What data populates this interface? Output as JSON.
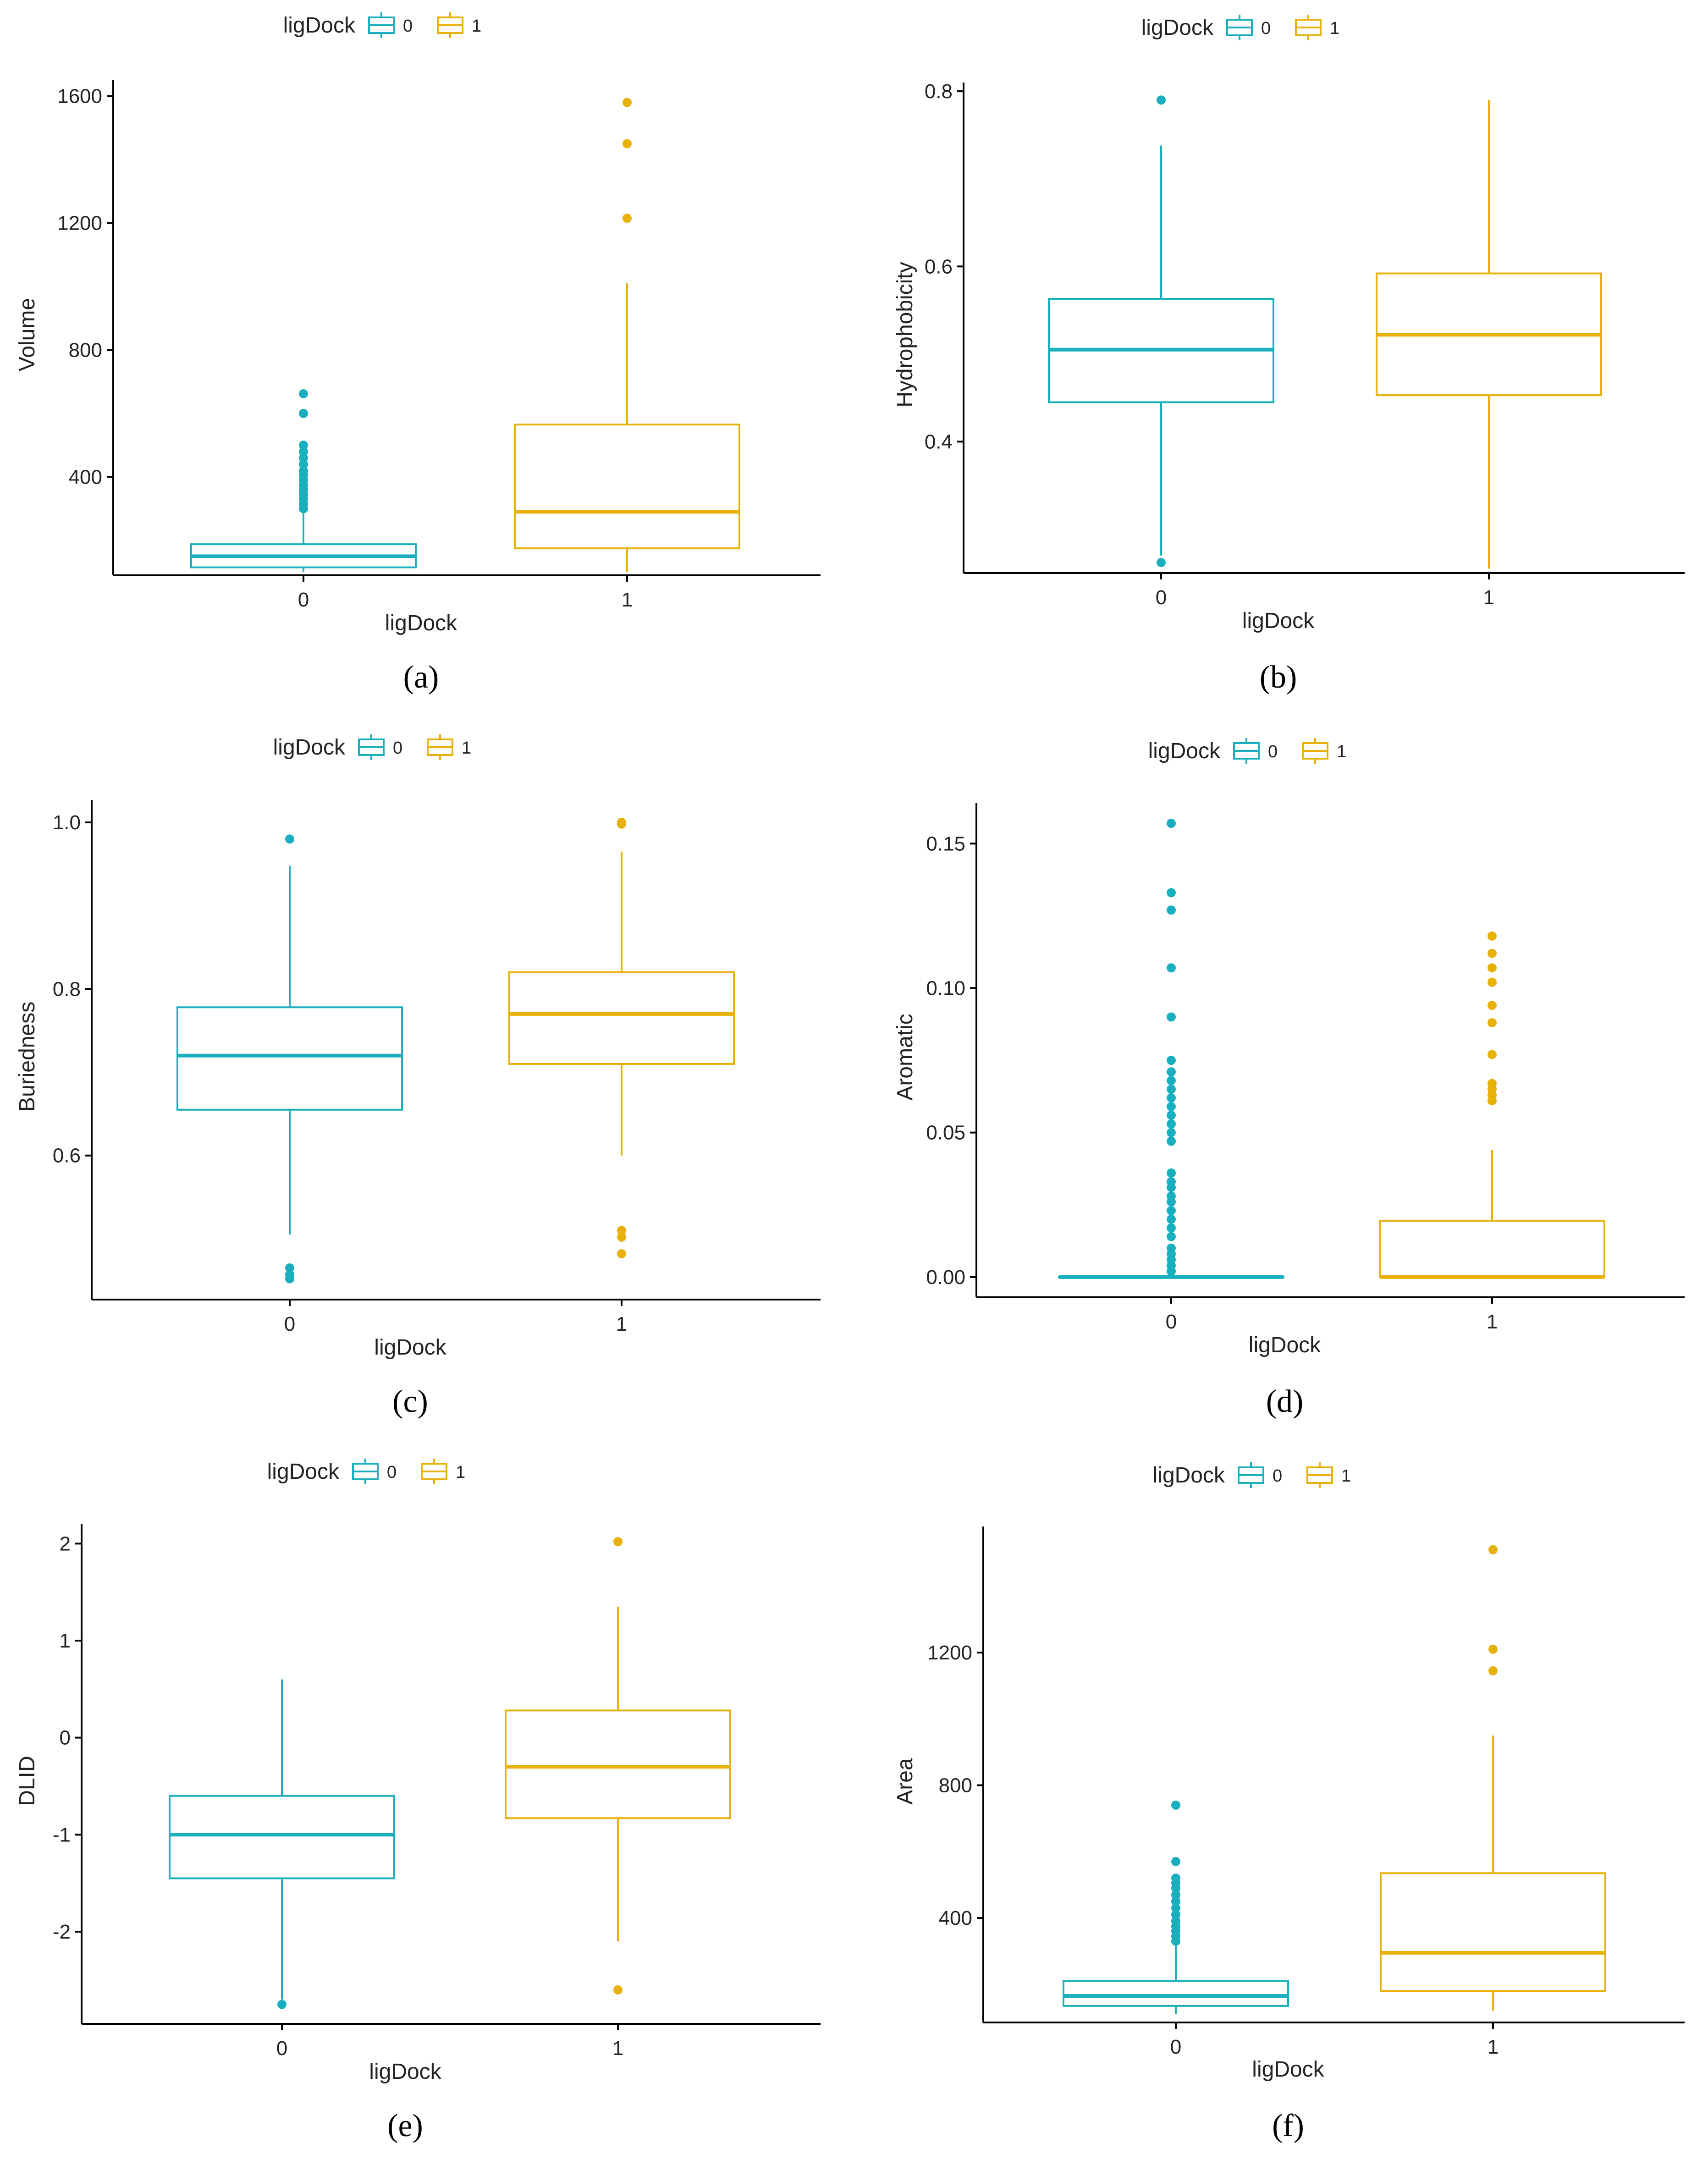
{
  "colors": {
    "group0": "#1AAFBE",
    "group1": "#E7B10A"
  },
  "legend": {
    "title": "ligDock",
    "keys": [
      "0",
      "1"
    ]
  },
  "chart_data": [
    {
      "type": "box",
      "panel_label": "(a)",
      "title": "",
      "xlabel": "ligDock",
      "ylabel": "Volume",
      "categories": [
        "0",
        "1"
      ],
      "ylim": [
        90,
        1650
      ],
      "yticks": [
        400,
        800,
        1200,
        1600
      ],
      "ytick_labels": [
        "400",
        "800",
        "1200",
        "1600"
      ],
      "boxes": [
        {
          "name": "0",
          "q1": 115,
          "median": 150,
          "q3": 188,
          "whisker_low": 100,
          "whisker_high": 290,
          "outliers": [
            300,
            315,
            330,
            345,
            360,
            375,
            390,
            405,
            420,
            440,
            460,
            480,
            500,
            600,
            662
          ]
        },
        {
          "name": "1",
          "q1": 175,
          "median": 290,
          "q3": 565,
          "whisker_low": 100,
          "whisker_high": 1010,
          "outliers": [
            1215,
            1450,
            1580
          ]
        }
      ]
    },
    {
      "type": "box",
      "panel_label": "(b)",
      "title": "",
      "xlabel": "ligDock",
      "ylabel": "Hydrophobicity",
      "categories": [
        "0",
        "1"
      ],
      "ylim": [
        0.25,
        0.81
      ],
      "yticks": [
        0.4,
        0.6,
        0.8
      ],
      "ytick_labels": [
        "0.4",
        "0.6",
        "0.8"
      ],
      "boxes": [
        {
          "name": "0",
          "q1": 0.445,
          "median": 0.505,
          "q3": 0.563,
          "whisker_low": 0.27,
          "whisker_high": 0.738,
          "outliers": [
            0.262,
            0.79
          ]
        },
        {
          "name": "1",
          "q1": 0.453,
          "median": 0.522,
          "q3": 0.592,
          "whisker_low": 0.255,
          "whisker_high": 0.79,
          "outliers": []
        }
      ]
    },
    {
      "type": "box",
      "panel_label": "(c)",
      "title": "",
      "xlabel": "ligDock",
      "ylabel": "Buriedness",
      "categories": [
        "0",
        "1"
      ],
      "ylim": [
        0.427,
        1.027
      ],
      "yticks": [
        0.6,
        0.8,
        1.0
      ],
      "ytick_labels": [
        "0.6",
        "0.8",
        "1.0"
      ],
      "boxes": [
        {
          "name": "0",
          "q1": 0.655,
          "median": 0.72,
          "q3": 0.778,
          "whisker_low": 0.505,
          "whisker_high": 0.948,
          "outliers": [
            0.452,
            0.457,
            0.465,
            0.98
          ]
        },
        {
          "name": "1",
          "q1": 0.71,
          "median": 0.77,
          "q3": 0.82,
          "whisker_low": 0.6,
          "whisker_high": 0.965,
          "outliers": [
            0.482,
            0.502,
            0.51,
            0.998,
            1.0
          ]
        }
      ]
    },
    {
      "type": "box",
      "panel_label": "(d)",
      "title": "",
      "xlabel": "ligDock",
      "ylabel": "Aromatic",
      "categories": [
        "0",
        "1"
      ],
      "ylim": [
        -0.007,
        0.164
      ],
      "yticks": [
        0.0,
        0.05,
        0.1,
        0.15
      ],
      "ytick_labels": [
        "0.00",
        "0.05",
        "0.10",
        "0.15"
      ],
      "boxes": [
        {
          "name": "0",
          "q1": 0.0,
          "median": 0.0,
          "q3": 0.0,
          "whisker_low": 0.0,
          "whisker_high": 0.0,
          "outliers": [
            0.002,
            0.004,
            0.006,
            0.008,
            0.01,
            0.014,
            0.017,
            0.02,
            0.023,
            0.026,
            0.028,
            0.031,
            0.033,
            0.036,
            0.047,
            0.05,
            0.053,
            0.056,
            0.059,
            0.062,
            0.065,
            0.068,
            0.071,
            0.075,
            0.09,
            0.107,
            0.127,
            0.133,
            0.157
          ]
        },
        {
          "name": "1",
          "q1": 0.0,
          "median": 0.0,
          "q3": 0.0195,
          "whisker_low": 0.0,
          "whisker_high": 0.044,
          "outliers": [
            0.061,
            0.063,
            0.065,
            0.067,
            0.077,
            0.088,
            0.094,
            0.102,
            0.107,
            0.112,
            0.118
          ]
        }
      ]
    },
    {
      "type": "box",
      "panel_label": "(e)",
      "title": "",
      "xlabel": "ligDock",
      "ylabel": "DLID",
      "categories": [
        "0",
        "1"
      ],
      "ylim": [
        -2.95,
        2.2
      ],
      "yticks": [
        -2,
        -1,
        0,
        1,
        2
      ],
      "ytick_labels": [
        "-2",
        "-1",
        "0",
        "1",
        "2"
      ],
      "boxes": [
        {
          "name": "0",
          "q1": -1.45,
          "median": -1.0,
          "q3": -0.6,
          "whisker_low": -2.7,
          "whisker_high": 0.6,
          "outliers": [
            -2.75
          ]
        },
        {
          "name": "1",
          "q1": -0.83,
          "median": -0.3,
          "q3": 0.28,
          "whisker_low": -2.1,
          "whisker_high": 1.35,
          "outliers": [
            -2.6,
            2.02
          ]
        }
      ]
    },
    {
      "type": "box",
      "panel_label": "(f)",
      "title": "",
      "xlabel": "ligDock",
      "ylabel": "Area",
      "categories": [
        "0",
        "1"
      ],
      "ylim": [
        85,
        1580
      ],
      "yticks": [
        400,
        800,
        1200
      ],
      "ytick_labels": [
        "400",
        "800",
        "1200"
      ],
      "boxes": [
        {
          "name": "0",
          "q1": 135,
          "median": 165,
          "q3": 210,
          "whisker_low": 110,
          "whisker_high": 320,
          "outliers": [
            330,
            345,
            360,
            375,
            390,
            410,
            430,
            450,
            470,
            490,
            505,
            520,
            570,
            740
          ]
        },
        {
          "name": "1",
          "q1": 180,
          "median": 295,
          "q3": 535,
          "whisker_low": 120,
          "whisker_high": 950,
          "outliers": [
            1145,
            1210,
            1510
          ]
        }
      ]
    }
  ]
}
